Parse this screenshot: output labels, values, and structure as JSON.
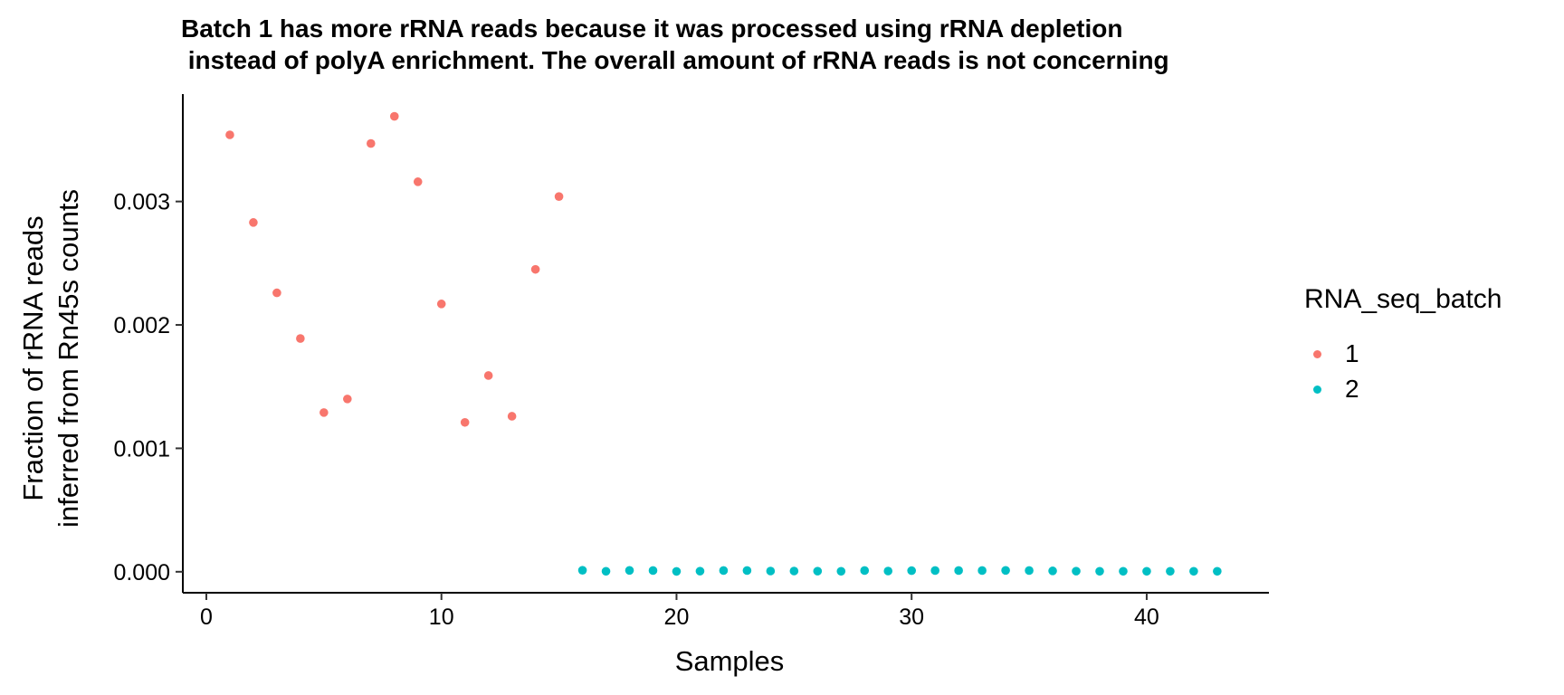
{
  "chart_data": {
    "type": "scatter",
    "title": [
      "Batch 1 has more rRNA reads because it was processed using rRNA depletion",
      " instead of polyA enrichment. The overall amount of rRNA reads is not concerning"
    ],
    "xlabel": "Samples",
    "ylabel": [
      "Fraction of rRNA reads",
      "inferred from Rn45s counts"
    ],
    "xlim": [
      -1,
      45.2
    ],
    "ylim": [
      -0.00017,
      0.00387
    ],
    "x_ticks": [
      0,
      10,
      20,
      30,
      40
    ],
    "x_tick_labels": [
      "0",
      "10",
      "20",
      "30",
      "40"
    ],
    "y_ticks": [
      0,
      0.001,
      0.002,
      0.003
    ],
    "y_tick_labels": [
      "0.000",
      "0.001",
      "0.002",
      "0.003"
    ],
    "grid": false,
    "legend": {
      "title": "RNA_seq_batch",
      "position": "right",
      "entries": [
        {
          "label": "1",
          "color": "#F8766D"
        },
        {
          "label": "2",
          "color": "#00BFC4"
        }
      ]
    },
    "series": [
      {
        "name": "1",
        "color": "#F8766D",
        "x": [
          1,
          2,
          3,
          4,
          5,
          6,
          7,
          8,
          9,
          10,
          11,
          12,
          13,
          14,
          15
        ],
        "y": [
          0.00354,
          0.00283,
          0.00226,
          0.00189,
          0.00129,
          0.0014,
          0.00347,
          0.00369,
          0.00316,
          0.00217,
          0.00121,
          0.00159,
          0.00126,
          0.00245,
          0.00304
        ]
      },
      {
        "name": "2",
        "color": "#00BFC4",
        "x": [
          16,
          17,
          18,
          19,
          20,
          21,
          22,
          23,
          24,
          25,
          26,
          27,
          28,
          29,
          30,
          31,
          32,
          33,
          34,
          35,
          36,
          37,
          38,
          39,
          40,
          41,
          42,
          43
        ],
        "y": [
          1.2e-05,
          4e-06,
          1.1e-05,
          1e-05,
          3e-06,
          5e-06,
          1e-05,
          1e-05,
          6e-06,
          6e-06,
          5e-06,
          4e-06,
          1e-05,
          6e-06,
          9e-06,
          1e-05,
          1e-05,
          1e-05,
          1.1e-05,
          1e-05,
          7e-06,
          5e-06,
          4e-06,
          4e-06,
          4e-06,
          4e-06,
          4e-06,
          4e-06
        ]
      }
    ]
  }
}
